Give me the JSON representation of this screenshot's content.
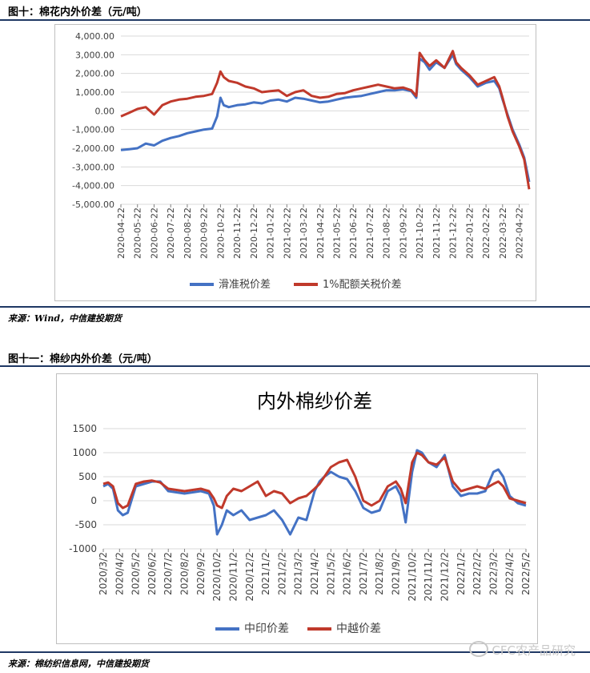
{
  "figure1": {
    "label": "图十：棉花内外价差（元/吨）",
    "source": "来源：Wind，中信建投期货"
  },
  "figure2": {
    "label": "图十一：棉纱内外价差（元/吨）",
    "source": "来源：棉纺织信息网，中信建投期货"
  },
  "watermark": "CFC农产品研究",
  "colors": {
    "blue": "#4472c4",
    "red": "#c0392b",
    "rule": "#1f3864"
  },
  "chart_data": [
    {
      "type": "line",
      "title": "",
      "ylim": [
        -5000,
        4000
      ],
      "yticks": [
        "4,000.00",
        "3,000.00",
        "2,000.00",
        "1,000.00",
        "0.00",
        "-1,000.00",
        "-2,000.00",
        "-3,000.00",
        "-4,000.00",
        "-5,000.00"
      ],
      "ytick_values": [
        4000,
        3000,
        2000,
        1000,
        0,
        -1000,
        -2000,
        -3000,
        -4000,
        -5000
      ],
      "xticks": [
        "2020-04-22",
        "2020-05-22",
        "2020-06-22",
        "2020-07-22",
        "2020-08-22",
        "2020-09-22",
        "2020-10-22",
        "2020-11-22",
        "2020-12-22",
        "2021-01-22",
        "2021-02-22",
        "2021-03-22",
        "2021-04-22",
        "2021-05-22",
        "2021-06-22",
        "2021-07-22",
        "2021-08-22",
        "2021-09-22",
        "2021-10-22",
        "2021-11-22",
        "2021-12-22",
        "2022-01-22",
        "2022-02-22",
        "2022-03-22",
        "2022-04-22"
      ],
      "x_range": [
        0,
        24.6
      ],
      "grid": "horizontal",
      "legend": "bottom",
      "series": [
        {
          "name": "滑准税价差",
          "color": "#4472c4",
          "x": [
            0,
            0.5,
            1,
            1.5,
            2,
            2.5,
            3,
            3.5,
            4,
            4.5,
            5,
            5.5,
            5.8,
            6,
            6.2,
            6.5,
            7,
            7.5,
            8,
            8.5,
            9,
            9.5,
            10,
            10.5,
            11,
            11.5,
            12,
            12.5,
            13,
            13.5,
            14,
            14.5,
            15,
            15.5,
            16,
            16.5,
            17,
            17.5,
            17.8,
            18,
            18.3,
            18.6,
            19,
            19.5,
            20,
            20.2,
            20.5,
            21,
            21.5,
            22,
            22.5,
            22.8,
            23,
            23.3,
            23.6,
            24,
            24.3,
            24.6
          ],
          "values": [
            -2100,
            -2050,
            -2000,
            -1750,
            -1850,
            -1600,
            -1450,
            -1350,
            -1200,
            -1100,
            -1000,
            -950,
            -300,
            700,
            300,
            200,
            300,
            350,
            450,
            400,
            550,
            600,
            500,
            700,
            650,
            550,
            450,
            500,
            600,
            700,
            750,
            800,
            900,
            1000,
            1100,
            1100,
            1150,
            1050,
            700,
            2800,
            2600,
            2200,
            2600,
            2300,
            3000,
            2500,
            2200,
            1800,
            1300,
            1500,
            1600,
            1200,
            600,
            -200,
            -1000,
            -1800,
            -2500,
            -3800
          ]
        },
        {
          "name": "1%配额关税价差",
          "color": "#c0392b",
          "x": [
            0,
            0.5,
            1,
            1.5,
            2,
            2.5,
            3,
            3.5,
            4,
            4.5,
            5,
            5.5,
            5.8,
            6,
            6.2,
            6.5,
            7,
            7.5,
            8,
            8.5,
            9,
            9.5,
            10,
            10.5,
            11,
            11.5,
            12,
            12.5,
            13,
            13.5,
            14,
            14.5,
            15,
            15.5,
            16,
            16.5,
            17,
            17.5,
            17.8,
            18,
            18.3,
            18.6,
            19,
            19.5,
            20,
            20.2,
            20.5,
            21,
            21.5,
            22,
            22.5,
            22.8,
            23,
            23.3,
            23.6,
            24,
            24.3,
            24.6
          ],
          "values": [
            -300,
            -100,
            100,
            200,
            -200,
            300,
            500,
            600,
            650,
            750,
            800,
            900,
            1500,
            2100,
            1800,
            1600,
            1500,
            1300,
            1200,
            1000,
            1050,
            1100,
            800,
            1000,
            1100,
            800,
            700,
            750,
            900,
            950,
            1100,
            1200,
            1300,
            1400,
            1300,
            1200,
            1250,
            1100,
            800,
            3100,
            2700,
            2400,
            2700,
            2300,
            3200,
            2600,
            2300,
            1900,
            1400,
            1600,
            1800,
            1300,
            700,
            -300,
            -1100,
            -1900,
            -2600,
            -4200
          ]
        }
      ]
    },
    {
      "type": "line",
      "title": "内外棉纱价差",
      "ylim": [
        -1000,
        1500
      ],
      "yticks": [
        "1500",
        "1000",
        "500",
        "0",
        "-500",
        "-1000"
      ],
      "ytick_values": [
        1500,
        1000,
        500,
        0,
        -500,
        -1000
      ],
      "xticks": [
        "2020/3/2",
        "2020/4/2",
        "2020/5/2",
        "2020/6/2",
        "2020/7/2",
        "2020/8/2",
        "2020/9/2",
        "2020/10/2",
        "2020/11/2",
        "2020/12/2",
        "2021/1/2",
        "2021/2/2",
        "2021/3/2",
        "2021/4/2",
        "2021/5/2",
        "2021/6/2",
        "2021/7/2",
        "2021/8/2",
        "2021/9/2",
        "2021/10/2",
        "2021/11/2",
        "2021/12/2",
        "2022/1/2",
        "2022/2/2",
        "2022/3/2",
        "2022/4/2",
        "2022/5/2"
      ],
      "x_range": [
        0,
        26
      ],
      "grid": "horizontal",
      "legend": "bottom",
      "series": [
        {
          "name": "中印价差",
          "color": "#4472c4",
          "x": [
            0,
            0.3,
            0.6,
            0.9,
            1.2,
            1.5,
            2,
            2.5,
            3,
            3.5,
            4,
            5,
            6,
            6.5,
            6.8,
            7,
            7.3,
            7.6,
            8,
            8.5,
            9,
            9.5,
            10,
            10.5,
            11,
            11.5,
            12,
            12.5,
            13,
            13.3,
            13.6,
            14,
            14.5,
            15,
            15.5,
            16,
            16.5,
            17,
            17.5,
            18,
            18.3,
            18.6,
            19,
            19.3,
            19.6,
            20,
            20.5,
            21,
            21.5,
            22,
            22.5,
            23,
            23.5,
            24,
            24.3,
            24.6,
            25,
            25.5,
            26
          ],
          "values": [
            300,
            350,
            250,
            -200,
            -300,
            -250,
            300,
            350,
            400,
            400,
            200,
            150,
            200,
            150,
            -100,
            -700,
            -500,
            -200,
            -300,
            -200,
            -400,
            -350,
            -300,
            -200,
            -400,
            -700,
            -350,
            -400,
            200,
            400,
            500,
            600,
            500,
            450,
            200,
            -150,
            -250,
            -200,
            200,
            300,
            100,
            -450,
            600,
            1050,
            1000,
            800,
            700,
            950,
            300,
            100,
            150,
            150,
            200,
            600,
            650,
            500,
            100,
            -50,
            -100
          ]
        },
        {
          "name": "中越价差",
          "color": "#c0392b",
          "x": [
            0,
            0.3,
            0.6,
            0.9,
            1.2,
            1.5,
            2,
            2.5,
            3,
            3.5,
            4,
            5,
            6,
            6.5,
            6.8,
            7,
            7.3,
            7.6,
            8,
            8.5,
            9,
            9.5,
            10,
            10.5,
            11,
            11.5,
            12,
            12.5,
            13,
            13.3,
            13.6,
            14,
            14.5,
            15,
            15.5,
            16,
            16.5,
            17,
            17.5,
            18,
            18.3,
            18.6,
            19,
            19.3,
            19.6,
            20,
            20.5,
            21,
            21.5,
            22,
            22.5,
            23,
            23.5,
            24,
            24.3,
            24.6,
            25,
            25.5,
            26
          ],
          "values": [
            350,
            380,
            300,
            -50,
            -150,
            -100,
            350,
            400,
            420,
            380,
            250,
            200,
            250,
            200,
            50,
            -100,
            -150,
            100,
            250,
            200,
            300,
            400,
            100,
            200,
            150,
            -50,
            50,
            100,
            250,
            350,
            500,
            700,
            800,
            850,
            500,
            0,
            -100,
            0,
            300,
            400,
            250,
            -50,
            800,
            1000,
            950,
            800,
            750,
            900,
            400,
            200,
            250,
            300,
            250,
            350,
            400,
            300,
            50,
            0,
            -50
          ]
        }
      ]
    }
  ]
}
